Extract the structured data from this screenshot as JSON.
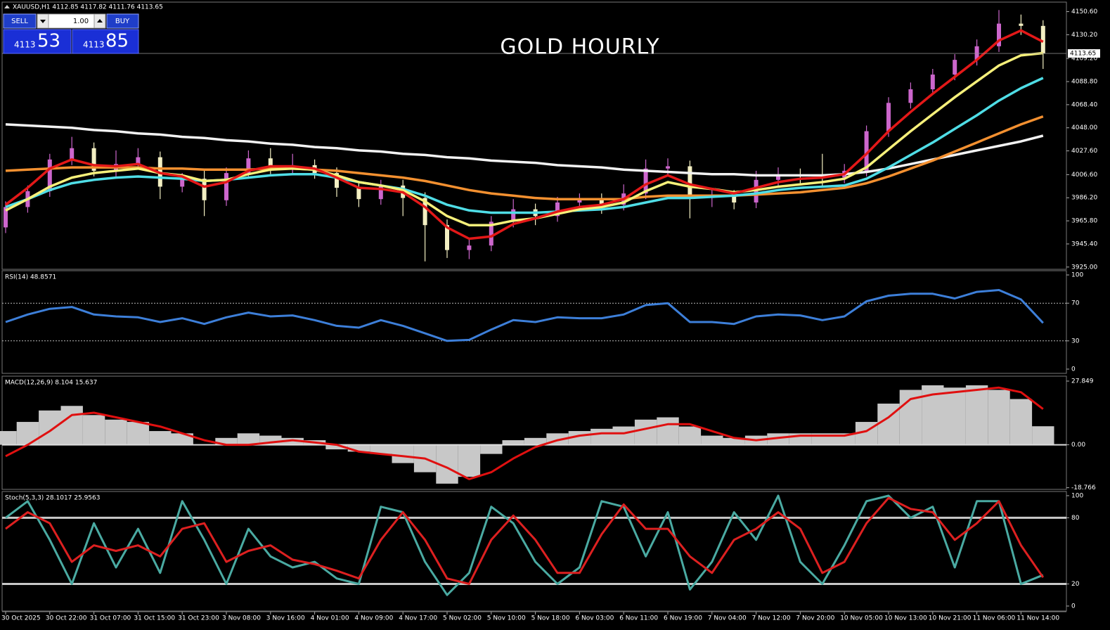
{
  "chart_data": [
    {
      "type": "candlestick",
      "title": "GOLD HOURLY",
      "subtitle": "XAUUSD,H1  4112.85 4117.82 4111.76 4113.65",
      "categories": [
        "30 Oct 2025",
        null,
        "30 Oct 22:00",
        null,
        "31 Oct 07:00",
        null,
        "31 Oct 15:00",
        null,
        "31 Oct 23:00",
        null,
        "3 Nov 08:00",
        null,
        "3 Nov 16:00",
        null,
        "4 Nov 01:00",
        null,
        "4 Nov 09:00",
        null,
        "4 Nov 17:00",
        null,
        "5 Nov 02:00",
        null,
        "5 Nov 10:00",
        null,
        "5 Nov 18:00",
        null,
        "6 Nov 03:00",
        null,
        "6 Nov 11:00",
        null,
        "6 Nov 19:00",
        null,
        "7 Nov 04:00",
        null,
        "7 Nov 12:00",
        null,
        "7 Nov 20:00",
        null,
        "10 Nov 05:00",
        null,
        "10 Nov 13:00",
        null,
        "10 Nov 21:00",
        null,
        "11 Nov 06:00",
        null,
        "11 Nov 14:00",
        null
      ],
      "open": [
        3960,
        3978,
        3992,
        4020,
        4030,
        4010,
        4016,
        4022,
        3996,
        4003,
        3984,
        4008,
        4021,
        4012,
        4015,
        4008,
        3995,
        3985,
        3997,
        3986,
        3962,
        3940,
        3944,
        3965,
        3976,
        3970,
        3982,
        3985,
        3980,
        3990,
        4012,
        4014,
        3986,
        3988,
        3982,
        4002,
        4006,
        4005,
        4004,
        4010,
        4045,
        4070,
        4082,
        4095,
        4108,
        4120,
        4140,
        4138
      ],
      "high": [
        3983,
        3997,
        4025,
        4040,
        4035,
        4028,
        4030,
        4027,
        4008,
        4010,
        4013,
        4028,
        4030,
        4025,
        4020,
        4013,
        4000,
        4002,
        4002,
        3991,
        3967,
        3950,
        3970,
        3985,
        3981,
        3987,
        3990,
        3990,
        3998,
        4020,
        4021,
        4019,
        3995,
        3993,
        4010,
        4013,
        4012,
        4025,
        4016,
        4050,
        4075,
        4088,
        4100,
        4113,
        4126,
        4152,
        4148,
        4143
      ],
      "low": [
        3955,
        3973,
        3987,
        4015,
        4005,
        4005,
        4011,
        3985,
        3991,
        3970,
        3979,
        4003,
        4007,
        4007,
        4003,
        3987,
        3978,
        3980,
        3970,
        3930,
        3933,
        3932,
        3939,
        3960,
        3962,
        3965,
        3977,
        3972,
        3975,
        3985,
        4005,
        3968,
        3978,
        3976,
        3977,
        3997,
        3999,
        3995,
        3999,
        4005,
        4040,
        4065,
        4077,
        4090,
        4103,
        4115,
        4130,
        4100
      ],
      "close": [
        3978,
        3992,
        4020,
        4030,
        4010,
        4016,
        4022,
        3996,
        4003,
        3984,
        4008,
        4021,
        4012,
        4015,
        4008,
        3995,
        3985,
        3997,
        3986,
        3962,
        3940,
        3944,
        3965,
        3976,
        3970,
        3982,
        3985,
        3980,
        3990,
        4012,
        4014,
        3986,
        3988,
        3982,
        4002,
        4006,
        4005,
        4004,
        4010,
        4045,
        4070,
        4082,
        4095,
        4108,
        4120,
        4140,
        4138,
        4113.65
      ],
      "up_color": "#cc66cc",
      "down_color": "#f3efc2",
      "series": [
        {
          "color": "#f2f2f2",
          "values": [
            4051,
            4050,
            4049,
            4048,
            4046,
            4045,
            4043,
            4042,
            4040,
            4039,
            4037,
            4036,
            4034,
            4033,
            4031,
            4030,
            4028,
            4027,
            4025,
            4024,
            4022,
            4021,
            4019,
            4018,
            4017,
            4015,
            4014,
            4013,
            4011,
            4010,
            4009,
            4008,
            4007,
            4007,
            4006,
            4006,
            4006,
            4006,
            4007,
            4009,
            4012,
            4016,
            4020,
            4024,
            4028,
            4032,
            4036,
            4041
          ]
        },
        {
          "color": "#f39030",
          "values": [
            4010,
            4011,
            4012,
            4013,
            4013,
            4013,
            4013,
            4012,
            4012,
            4011,
            4011,
            4011,
            4012,
            4012,
            4011,
            4010,
            4008,
            4006,
            4004,
            4001,
            3997,
            3993,
            3990,
            3988,
            3986,
            3985,
            3985,
            3985,
            3985,
            3987,
            3988,
            3988,
            3988,
            3988,
            3989,
            3990,
            3991,
            3993,
            3995,
            3999,
            4005,
            4012,
            4019,
            4027,
            4035,
            4043,
            4051,
            4058
          ]
        },
        {
          "color": "#4fdde6",
          "values": [
            3978,
            3985,
            3993,
            3999,
            4002,
            4004,
            4005,
            4004,
            4003,
            4001,
            4002,
            4004,
            4006,
            4007,
            4007,
            4004,
            4000,
            3997,
            3994,
            3988,
            3980,
            3975,
            3973,
            3973,
            3973,
            3974,
            3975,
            3976,
            3978,
            3982,
            3986,
            3986,
            3987,
            3988,
            3990,
            3993,
            3995,
            3996,
            3997,
            4003,
            4013,
            4024,
            4035,
            4047,
            4059,
            4072,
            4083,
            4092
          ]
        },
        {
          "color": "#f6f07a",
          "values": [
            3975,
            3985,
            3996,
            4004,
            4008,
            4010,
            4012,
            4008,
            4006,
            4001,
            4002,
            4007,
            4011,
            4012,
            4011,
            4006,
            4000,
            3997,
            3993,
            3983,
            3970,
            3962,
            3962,
            3966,
            3968,
            3972,
            3976,
            3978,
            3982,
            3992,
            4000,
            3996,
            3994,
            3991,
            3993,
            3996,
            3998,
            4000,
            4003,
            4013,
            4029,
            4045,
            4060,
            4075,
            4089,
            4103,
            4112,
            4114
          ]
        },
        {
          "color": "#e31818",
          "values": [
            3980,
            3995,
            4012,
            4020,
            4015,
            4014,
            4016,
            4008,
            4005,
            3996,
            4000,
            4010,
            4014,
            4014,
            4012,
            4004,
            3995,
            3994,
            3991,
            3978,
            3960,
            3950,
            3952,
            3963,
            3968,
            3974,
            3978,
            3980,
            3985,
            3998,
            4006,
            3998,
            3994,
            3990,
            3995,
            4000,
            4003,
            4004,
            4007,
            4025,
            4045,
            4062,
            4078,
            4093,
            4108,
            4125,
            4134,
            4124
          ]
        }
      ],
      "current_price": 4113.65,
      "ylim": [
        3923,
        4159
      ],
      "yticks": [
        {
          "value": 4150.6,
          "label": "4150.60"
        },
        {
          "value": 4130.2,
          "label": "4130.20"
        },
        {
          "value": 4109.2,
          "label": "4109.20"
        },
        {
          "value": 4088.8,
          "label": "4088.80"
        },
        {
          "value": 4068.4,
          "label": "4068.40"
        },
        {
          "value": 4048,
          "label": "4048.00"
        },
        {
          "value": 4027.6,
          "label": "4027.60"
        },
        {
          "value": 4006.6,
          "label": "4006.60"
        },
        {
          "value": 3986.2,
          "label": "3986.20"
        },
        {
          "value": 3965.8,
          "label": "3965.80"
        },
        {
          "value": 3945.4,
          "label": "3945.40"
        },
        {
          "value": 3925,
          "label": "3925.00"
        }
      ],
      "grid": false
    },
    {
      "type": "line",
      "title": "RSI(14) 48.8571",
      "series": [
        {
          "color": "#3d7fd9",
          "values": [
            50,
            58,
            64,
            66,
            58,
            56,
            55,
            50,
            54,
            48,
            55,
            60,
            56,
            57,
            52,
            46,
            44,
            52,
            46,
            38,
            30,
            31,
            42,
            52,
            50,
            55,
            54,
            54,
            58,
            68,
            70,
            50,
            50,
            48,
            56,
            58,
            57,
            52,
            56,
            72,
            78,
            80,
            80,
            75,
            82,
            84,
            74,
            49
          ]
        }
      ],
      "levels": [
        70,
        30
      ],
      "level_style": "dotted",
      "ylim": [
        -4.5,
        104.5
      ],
      "yticks": [
        100,
        70,
        30,
        0
      ]
    },
    {
      "type": "macd",
      "title": "MACD(12,26,9) 8.104 15.637",
      "histogram": {
        "color": "#c8c8c8",
        "values": [
          6,
          10,
          15,
          17,
          13,
          11,
          10,
          6,
          5,
          0,
          3,
          5,
          4,
          3,
          2,
          -2,
          -3,
          -4,
          -8,
          -12,
          -17,
          -14,
          -4,
          2,
          3,
          5,
          6,
          7,
          8,
          11,
          12,
          8,
          4,
          3,
          4,
          5,
          5,
          5,
          5,
          10,
          18,
          24,
          26,
          25,
          26,
          24,
          20,
          8.104
        ]
      },
      "series": [
        {
          "color": "#e01010",
          "values": [
            -5,
            0,
            6,
            13,
            14,
            12,
            10,
            8,
            5,
            2,
            0,
            0,
            1,
            2,
            1,
            0,
            -3,
            -4,
            -5,
            -6,
            -10,
            -15,
            -12,
            -6,
            -1,
            2,
            4,
            5,
            5,
            7,
            9,
            9,
            6,
            3,
            2,
            3,
            4,
            4,
            4,
            6,
            12,
            20,
            22,
            23,
            24,
            25,
            23,
            15.637
          ]
        }
      ],
      "ylim": [
        -19.5,
        30
      ],
      "yticks": [
        27.849,
        {
          "value": 0,
          "label": "0.00"
        },
        -18.766
      ]
    },
    {
      "type": "line",
      "title": "Stoch(5,3,3) 28.1017 25.9563",
      "series": [
        {
          "color": "#4aaaa2",
          "values": [
            80,
            95,
            60,
            20,
            75,
            35,
            70,
            30,
            95,
            60,
            20,
            70,
            45,
            35,
            40,
            25,
            20,
            90,
            85,
            40,
            10,
            30,
            90,
            75,
            40,
            20,
            35,
            95,
            90,
            45,
            85,
            15,
            40,
            85,
            60,
            100,
            40,
            20,
            55,
            95,
            100,
            80,
            90,
            35,
            95,
            95,
            20,
            28.1017
          ]
        },
        {
          "color": "#dd2020",
          "values": [
            70,
            85,
            75,
            40,
            55,
            50,
            55,
            45,
            70,
            75,
            40,
            50,
            55,
            42,
            38,
            32,
            25,
            60,
            85,
            60,
            25,
            20,
            60,
            82,
            60,
            30,
            30,
            65,
            92,
            70,
            70,
            45,
            30,
            60,
            70,
            85,
            70,
            30,
            40,
            75,
            98,
            88,
            85,
            60,
            75,
            95,
            55,
            25.9563
          ]
        }
      ],
      "levels": [
        80,
        20
      ],
      "level_style": "solid",
      "ylim": [
        -4.5,
        103.8
      ],
      "yticks": [
        100,
        80,
        20,
        0
      ]
    }
  ],
  "trade_panel": {
    "sell": "SELL",
    "lot": "1.00",
    "buy": "BUY",
    "bid_big": "4113",
    "bid_small": "53",
    "ask_big": "4113",
    "ask_small": "85"
  }
}
